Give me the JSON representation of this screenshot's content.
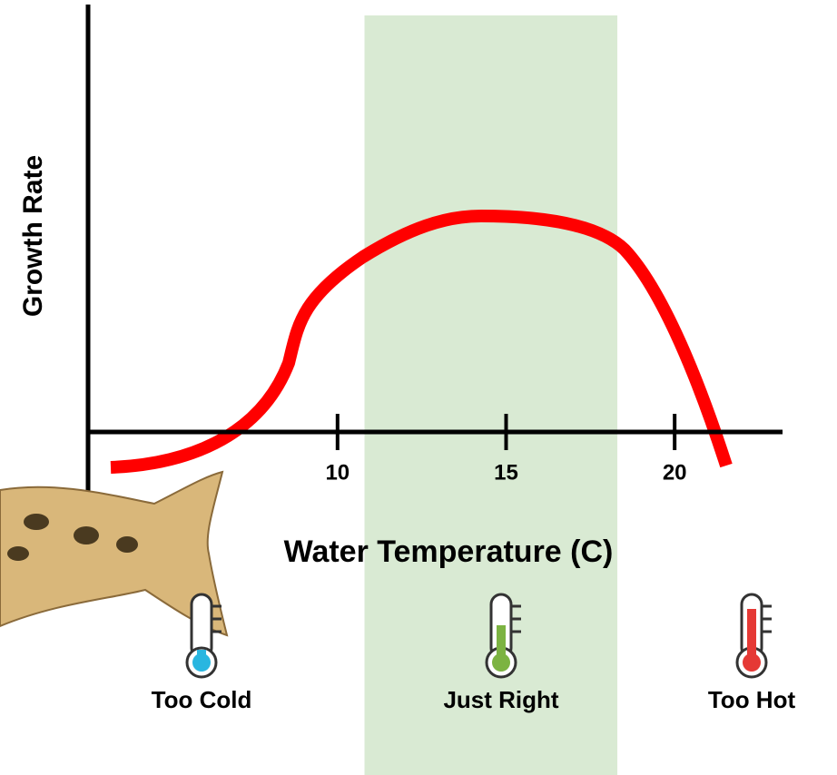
{
  "chart_data": {
    "type": "line",
    "y_label": "Growth Rate",
    "x_label": "Water Temperature (C)",
    "xlim": [
      2.6,
      23.2
    ],
    "xticks": [
      10,
      15,
      20
    ],
    "optimal_range": [
      10.8,
      18.3
    ],
    "band_color": "#d9ead3",
    "curve_color": "#ff0000",
    "zones": [
      {
        "label": "Too Cold",
        "color": "#29b6e0"
      },
      {
        "label": "Just Right",
        "color": "#7cb342"
      },
      {
        "label": "Too Hot",
        "color": "#e53935"
      }
    ]
  }
}
